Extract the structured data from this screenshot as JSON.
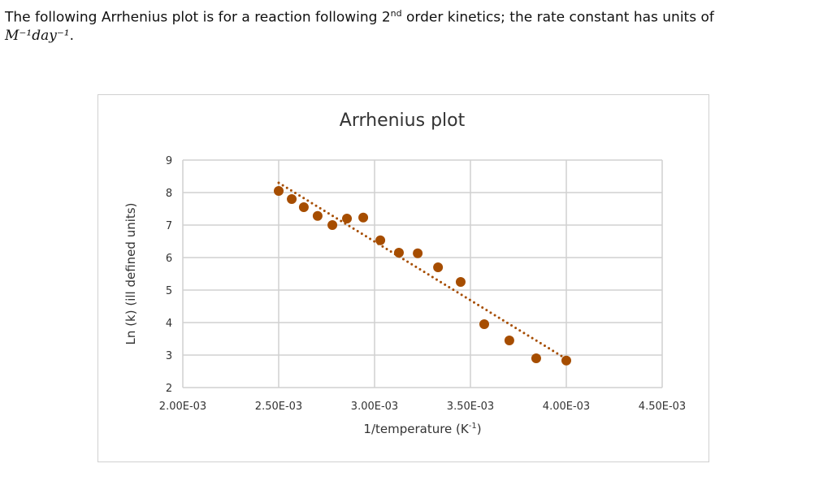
{
  "intro": {
    "text_before": "The following Arrhenius plot is for a reaction following 2",
    "superscript": "nd",
    "text_after": " order kinetics; the rate constant has units of",
    "units": "M⁻¹day⁻¹",
    "period": "."
  },
  "chart_data": {
    "type": "scatter",
    "title": "Arrhenius plot",
    "xlabel": "1/temperature (K",
    "xlabel_sup": "-1",
    "xlabel_end": ")",
    "ylabel": "Ln (k) (ill defined units)",
    "xlim": [
      0.002,
      0.0045
    ],
    "ylim": [
      2,
      9
    ],
    "x_ticks": [
      0.002,
      0.0025,
      0.003,
      0.0035,
      0.004,
      0.0045
    ],
    "x_tick_labels": [
      "2.00E-03",
      "2.50E-03",
      "3.00E-03",
      "3.50E-03",
      "4.00E-03",
      "4.50E-03"
    ],
    "y_ticks": [
      2,
      3,
      4,
      5,
      6,
      7,
      8,
      9
    ],
    "y_tick_labels": [
      "2",
      "3",
      "4",
      "5",
      "6",
      "7",
      "8",
      "9"
    ],
    "grid": true,
    "marker_color": "#a64d00",
    "points": [
      [
        0.0025,
        8.05
      ],
      [
        0.002568,
        7.8
      ],
      [
        0.002631,
        7.55
      ],
      [
        0.002703,
        7.28
      ],
      [
        0.00278,
        7.0
      ],
      [
        0.002856,
        7.2
      ],
      [
        0.002941,
        7.23
      ],
      [
        0.00303,
        6.53
      ],
      [
        0.003127,
        6.15
      ],
      [
        0.003225,
        6.13
      ],
      [
        0.003331,
        5.7
      ],
      [
        0.003449,
        5.25
      ],
      [
        0.003572,
        3.95
      ],
      [
        0.003703,
        3.45
      ],
      [
        0.003843,
        2.9
      ],
      [
        0.004,
        2.83
      ]
    ],
    "trendline": {
      "type": "linear",
      "style": "dotted",
      "from": [
        0.0025,
        8.3
      ],
      "to": [
        0.004,
        2.88
      ]
    }
  }
}
